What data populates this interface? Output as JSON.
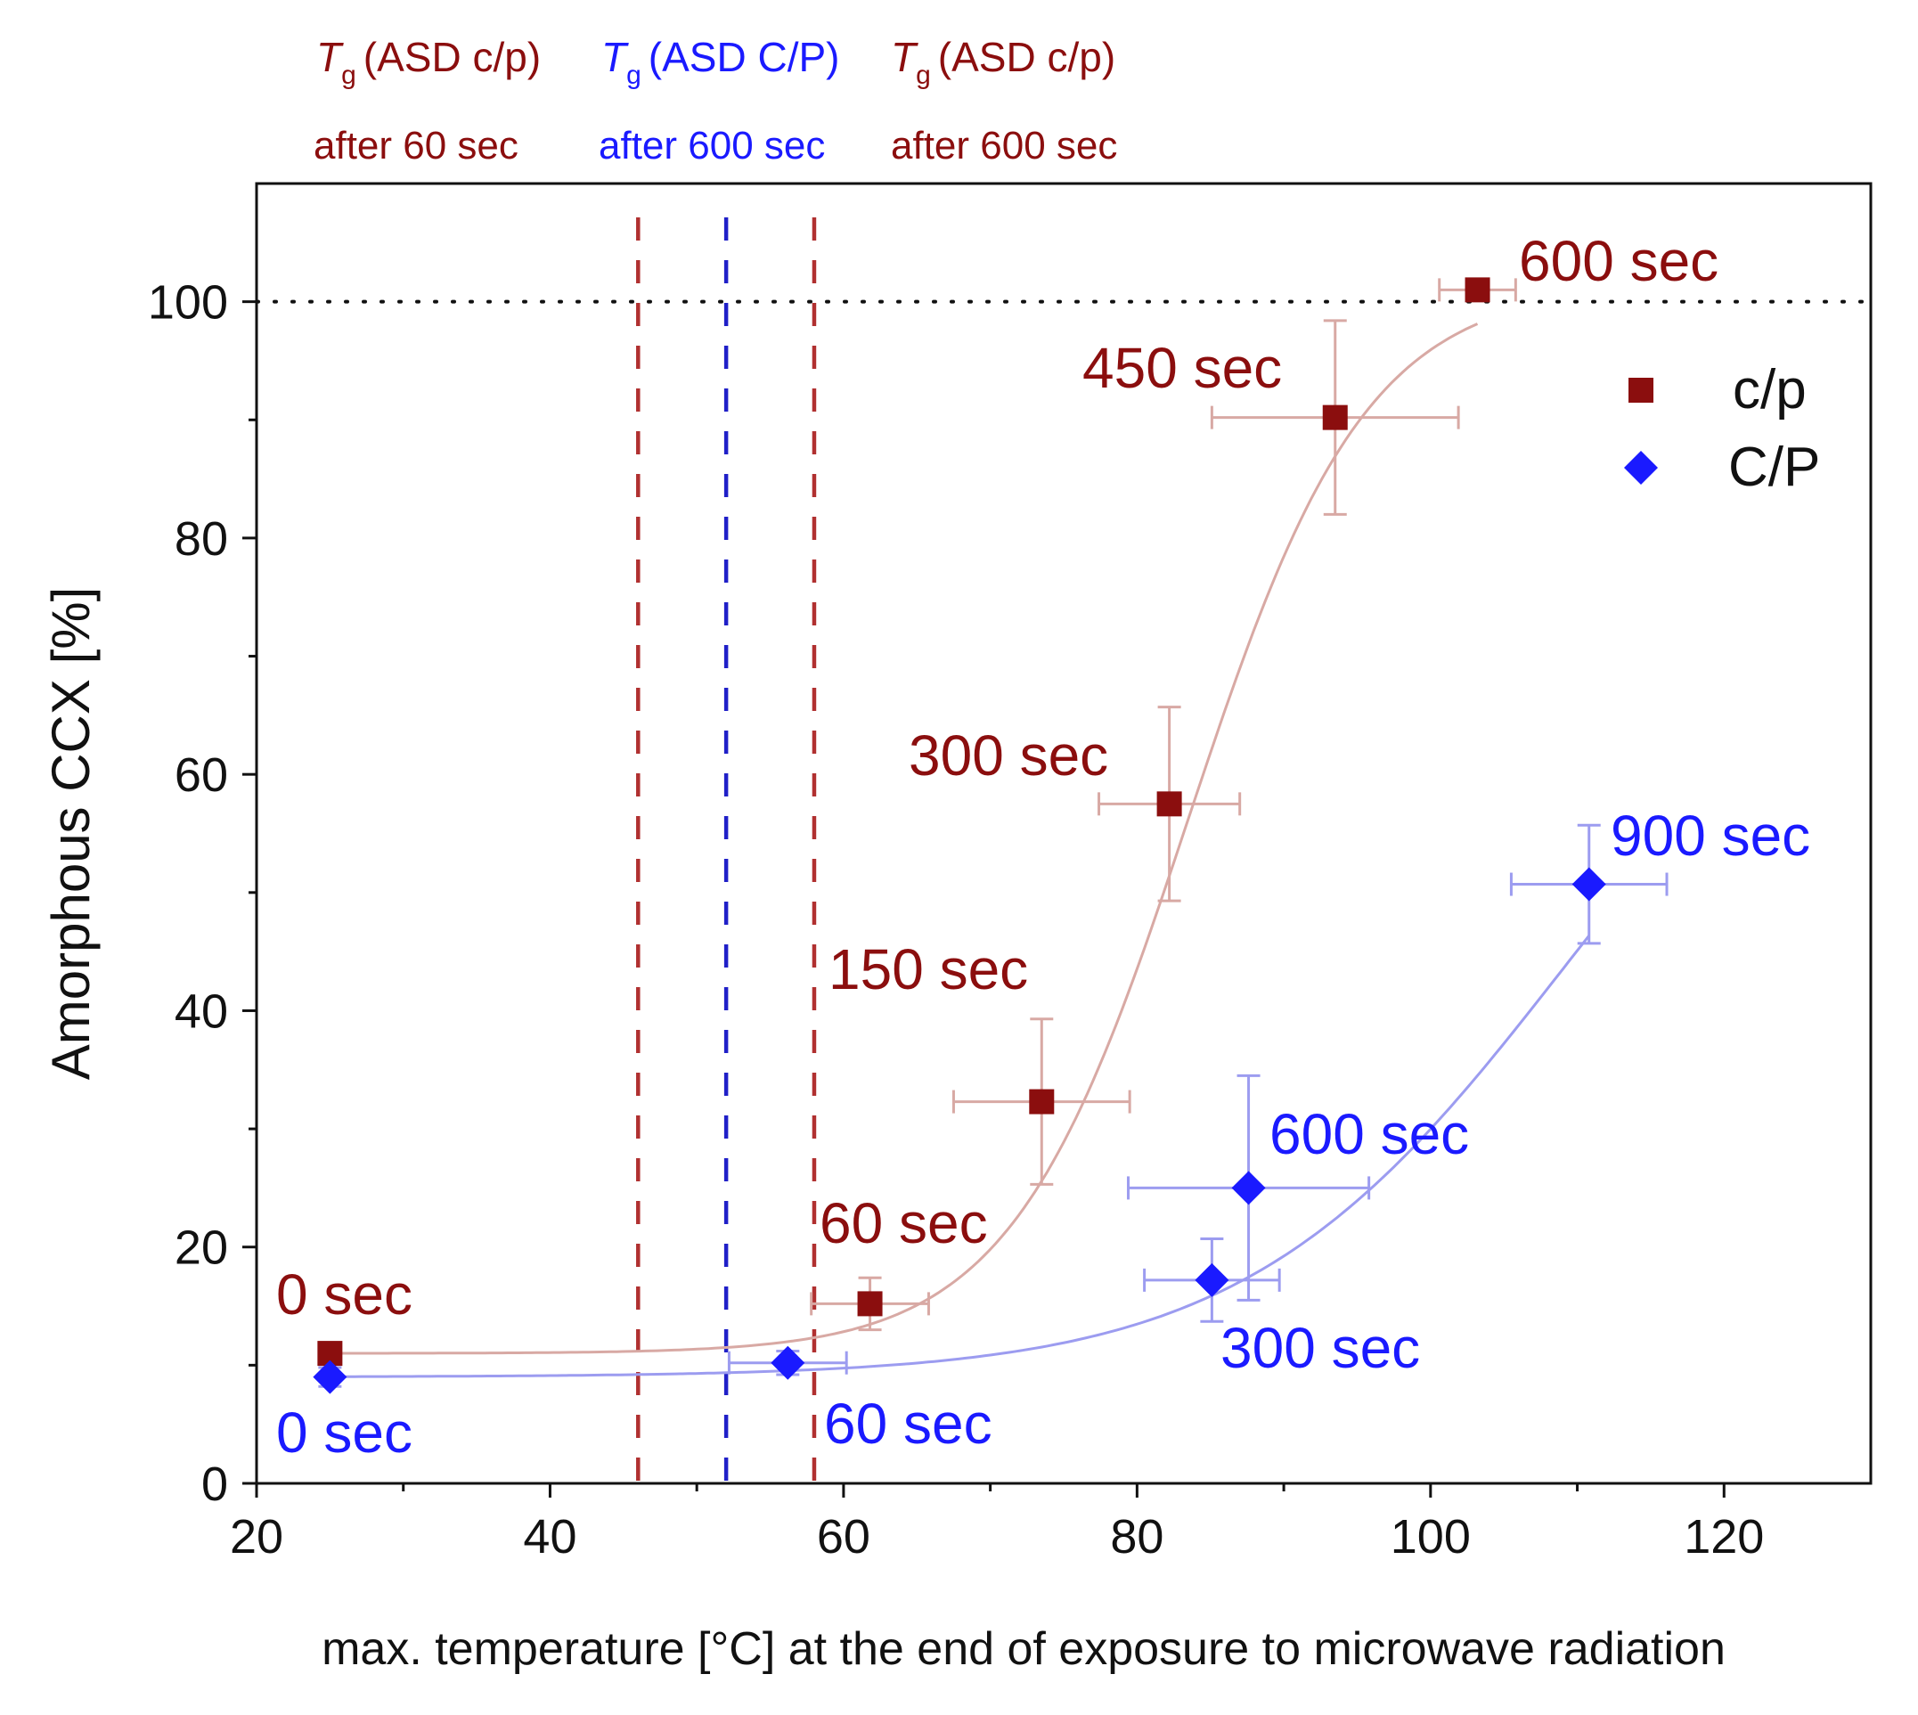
{
  "chart_data": {
    "type": "scatter",
    "xlabel": "max. temperature [°C] at the end of exposure to microwave radiation",
    "ylabel": "Amorphous CCX [%]",
    "xlim": [
      20,
      130
    ],
    "ylim": [
      0,
      110
    ],
    "x_ticks": [
      20,
      40,
      60,
      80,
      100,
      120
    ],
    "y_ticks": [
      0,
      20,
      40,
      60,
      80,
      100
    ],
    "legend_position": "top-right",
    "reference_line_y": 100,
    "series": [
      {
        "name": "c/p",
        "marker": "square",
        "color": "#8b0e0e",
        "fit_color": "#d8a9a4",
        "points": [
          {
            "x": 25,
            "y": 11,
            "xerr": 0,
            "yerr": 0.8,
            "label": "0 sec"
          },
          {
            "x": 61.8,
            "y": 15.2,
            "xerr": 4,
            "yerr": 2.2,
            "label": "60 sec"
          },
          {
            "x": 73.5,
            "y": 32.3,
            "xerr": 6,
            "yerr": 7,
            "label": "150 sec"
          },
          {
            "x": 82.2,
            "y": 57.5,
            "xerr": 4.8,
            "yerr": 8.2,
            "label": "300 sec"
          },
          {
            "x": 93.5,
            "y": 90.2,
            "xerr": 8.4,
            "yerr": 8.2,
            "label": "450 sec"
          },
          {
            "x": 103.2,
            "y": 101,
            "xerr": 2.6,
            "yerr": 0.5,
            "label": "600 sec"
          }
        ]
      },
      {
        "name": "C/P",
        "marker": "diamond",
        "color": "#1a1aff",
        "fit_color": "#9c9cf0",
        "points": [
          {
            "x": 25,
            "y": 9,
            "xerr": 0,
            "yerr": 0.8,
            "label": "0 sec"
          },
          {
            "x": 56.2,
            "y": 10.2,
            "xerr": 4,
            "yerr": 1,
            "label": "60 sec"
          },
          {
            "x": 85.1,
            "y": 17.2,
            "xerr": 4.6,
            "yerr": 3.5,
            "label": "300 sec"
          },
          {
            "x": 87.6,
            "y": 25,
            "xerr": 8.2,
            "yerr": 9.5,
            "label": "600 sec"
          },
          {
            "x": 110.8,
            "y": 50.7,
            "xerr": 5.3,
            "yerr": 5,
            "label": "900 sec"
          }
        ]
      }
    ],
    "vertical_lines": [
      {
        "x": 46,
        "color": "#b03030",
        "title": "(ASD c/p)",
        "subtitle": "after 60 sec"
      },
      {
        "x": 52,
        "color": "#2020c8",
        "title": "(ASD C/P)",
        "subtitle": "after 600 sec"
      },
      {
        "x": 58,
        "color": "#b03030",
        "title": "(ASD c/p)",
        "subtitle": "after 600 sec"
      }
    ],
    "tg_symbol": "T",
    "tg_subscript": "g"
  }
}
